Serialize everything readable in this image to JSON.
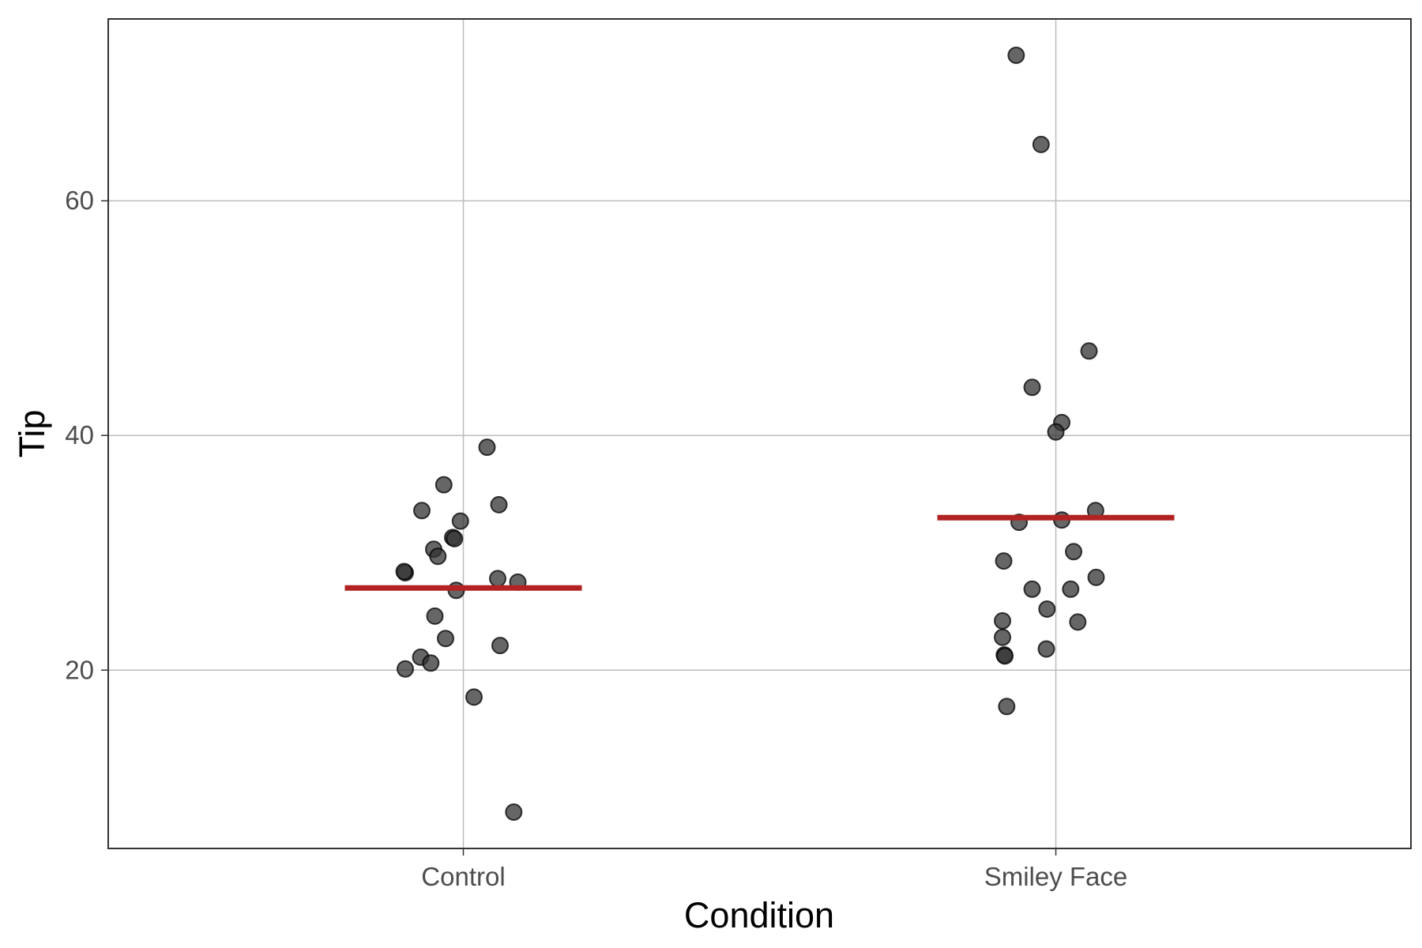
{
  "chart_data": {
    "type": "scatter",
    "title": "",
    "xlabel": "Condition",
    "ylabel": "Tip",
    "categories": [
      "Control",
      "Smiley Face"
    ],
    "ylim": [
      4.8,
      75.5
    ],
    "yticks": [
      20,
      40,
      60
    ],
    "ytick_labels": [
      "20",
      "40",
      "60"
    ],
    "grid": true,
    "legend": "none",
    "point_color": "#333333",
    "point_opacity": 0.75,
    "mean_line_color": "#b22222",
    "series": [
      {
        "name": "Control",
        "points": [
          {
            "jitter": -0.098,
            "y": 28.3
          },
          {
            "jitter": 0.04,
            "y": 39.0
          },
          {
            "jitter": -0.033,
            "y": 35.8
          },
          {
            "jitter": -0.07,
            "y": 33.6
          },
          {
            "jitter": 0.06,
            "y": 34.1
          },
          {
            "jitter": -0.005,
            "y": 32.7
          },
          {
            "jitter": -0.018,
            "y": 31.3
          },
          {
            "jitter": -0.015,
            "y": 31.2
          },
          {
            "jitter": -0.05,
            "y": 30.3
          },
          {
            "jitter": -0.043,
            "y": 29.7
          },
          {
            "jitter": -0.1,
            "y": 28.4
          },
          {
            "jitter": 0.058,
            "y": 27.8
          },
          {
            "jitter": 0.092,
            "y": 27.5
          },
          {
            "jitter": -0.012,
            "y": 26.8
          },
          {
            "jitter": -0.048,
            "y": 24.6
          },
          {
            "jitter": -0.03,
            "y": 22.7
          },
          {
            "jitter": 0.062,
            "y": 22.1
          },
          {
            "jitter": -0.072,
            "y": 21.1
          },
          {
            "jitter": -0.055,
            "y": 20.6
          },
          {
            "jitter": -0.098,
            "y": 20.1
          },
          {
            "jitter": 0.018,
            "y": 17.7
          },
          {
            "jitter": 0.085,
            "y": 7.9
          }
        ],
        "mean": 27.0
      },
      {
        "name": "Smiley Face",
        "points": [
          {
            "jitter": -0.067,
            "y": 72.4
          },
          {
            "jitter": -0.025,
            "y": 64.8
          },
          {
            "jitter": 0.056,
            "y": 47.2
          },
          {
            "jitter": -0.04,
            "y": 44.1
          },
          {
            "jitter": 0.01,
            "y": 41.1
          },
          {
            "jitter": 0.0,
            "y": 40.3
          },
          {
            "jitter": 0.067,
            "y": 33.6
          },
          {
            "jitter": -0.062,
            "y": 32.6
          },
          {
            "jitter": 0.01,
            "y": 32.8
          },
          {
            "jitter": 0.03,
            "y": 30.1
          },
          {
            "jitter": -0.088,
            "y": 29.3
          },
          {
            "jitter": 0.068,
            "y": 27.9
          },
          {
            "jitter": -0.04,
            "y": 26.9
          },
          {
            "jitter": 0.025,
            "y": 26.9
          },
          {
            "jitter": -0.015,
            "y": 25.2
          },
          {
            "jitter": -0.09,
            "y": 24.2
          },
          {
            "jitter": 0.037,
            "y": 24.1
          },
          {
            "jitter": -0.09,
            "y": 22.8
          },
          {
            "jitter": -0.087,
            "y": 21.3
          },
          {
            "jitter": -0.086,
            "y": 21.2
          },
          {
            "jitter": -0.016,
            "y": 21.8
          },
          {
            "jitter": -0.083,
            "y": 16.9
          }
        ],
        "mean": 33.0
      }
    ]
  }
}
